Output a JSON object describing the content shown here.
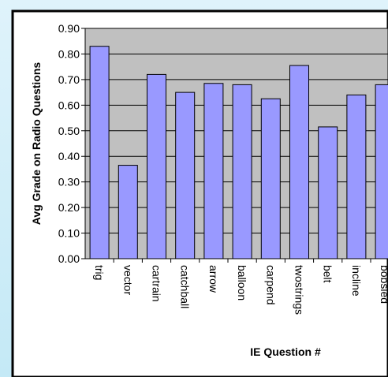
{
  "chart_data": {
    "type": "bar",
    "title": "",
    "xlabel": "IE Question #",
    "ylabel": "Avg Grade on Radio Questions",
    "categories": [
      "trig",
      "vector",
      "cartrain",
      "catchball",
      "arrow",
      "balloon",
      "carpend",
      "twostrings",
      "belt",
      "incline",
      "bobsled"
    ],
    "values": [
      0.83,
      0.365,
      0.72,
      0.65,
      0.685,
      0.68,
      0.625,
      0.755,
      0.515,
      0.64,
      0.68
    ],
    "ylim": [
      0,
      0.9
    ],
    "yticks": [
      "0.00",
      "0.10",
      "0.20",
      "0.30",
      "0.40",
      "0.50",
      "0.60",
      "0.70",
      "0.80",
      "0.90"
    ],
    "grid": true,
    "legend": "none",
    "colors": {
      "bar_fill": "#9999ff",
      "bar_stroke": "#000000",
      "plot_bg": "#c0c0c0",
      "chart_bg": "#ffffff",
      "frame": "#000000",
      "page_bg": "#cdeef8"
    }
  }
}
